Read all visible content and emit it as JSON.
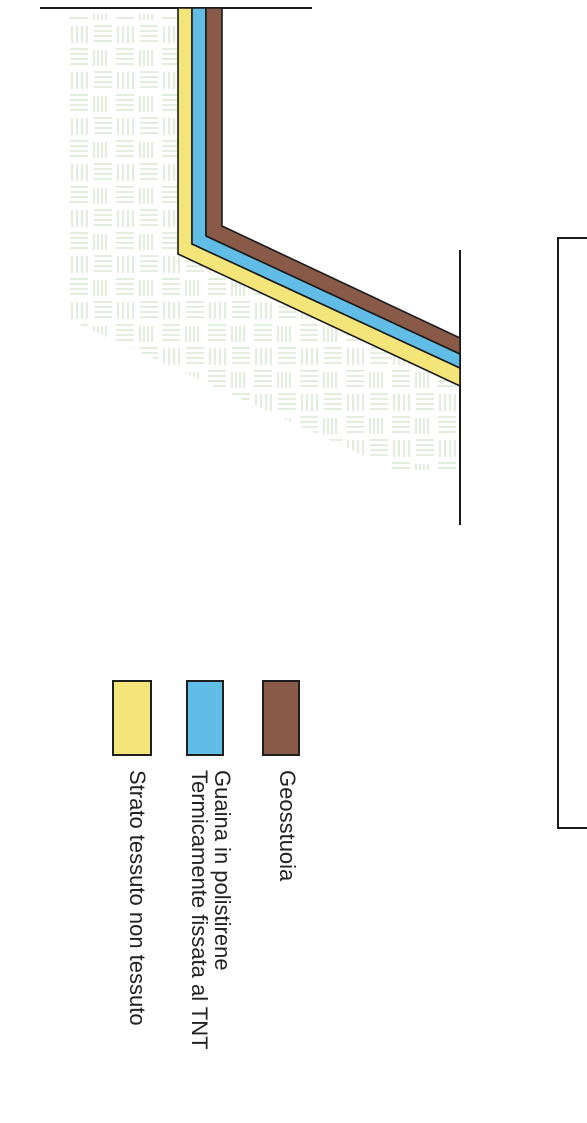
{
  "colors": {
    "geostuoia": "#8a5a48",
    "polystyrene": "#62bde6",
    "tnt": "#f4e57a",
    "soil_hatch": "#bcd9b2",
    "line": "#1a1a1a"
  },
  "legend": [
    {
      "label": "Geosstuoia",
      "color_key": "geostuoia"
    },
    {
      "label": "Guaina in polistirene",
      "label2": "Termicamente fissata al TNT",
      "color_key": "polystyrene"
    },
    {
      "label": "Strato tessuto non tessuto",
      "color_key": "tnt"
    }
  ]
}
